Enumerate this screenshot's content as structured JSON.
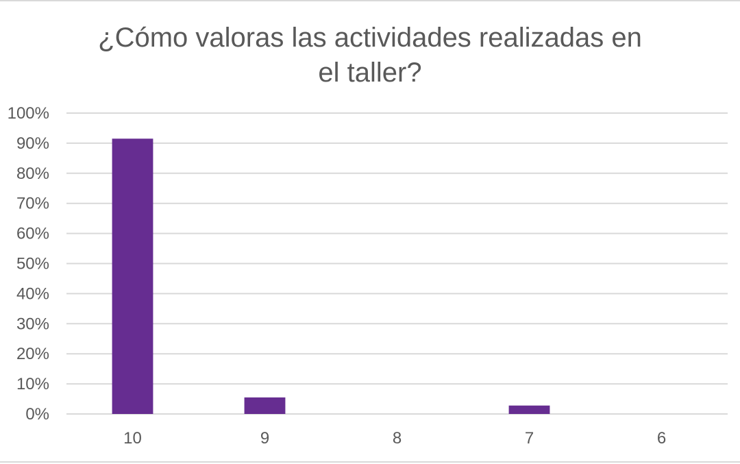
{
  "chart_data": {
    "type": "bar",
    "title": "¿Cómo valoras las actividades realizadas en el taller?",
    "title_lines": [
      "¿Cómo valoras las actividades realizadas en",
      "el taller?"
    ],
    "categories": [
      "10",
      "9",
      "8",
      "7",
      "6"
    ],
    "values": [
      0.915,
      0.055,
      0.0,
      0.028,
      0.0
    ],
    "ylim": [
      0,
      1
    ],
    "y_ticks": [
      0,
      0.1,
      0.2,
      0.3,
      0.4,
      0.5,
      0.6,
      0.7,
      0.8,
      0.9,
      1.0
    ],
    "y_tick_labels": [
      "0%",
      "10%",
      "20%",
      "30%",
      "40%",
      "50%",
      "60%",
      "70%",
      "80%",
      "90%",
      "100%"
    ],
    "xlabel": "",
    "ylabel": "",
    "grid": true,
    "legend": "none",
    "bar_color": "#662d91",
    "gridline_color": "#d9d9d9",
    "text_color": "#595959"
  }
}
